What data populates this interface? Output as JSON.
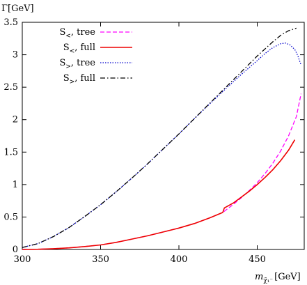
{
  "chart_data": {
    "type": "line",
    "title": "",
    "ylabel": "Γ[GeV]",
    "xlabel": {
      "main": "m",
      "subscript": "χ̃₁⁻",
      "unit": "[GeV]"
    },
    "xlim": [
      300,
      480
    ],
    "ylim": [
      0,
      3.5
    ],
    "xticks": [
      300,
      350,
      400,
      450
    ],
    "yticks": [
      0,
      0.5,
      1,
      1.5,
      2,
      2.5,
      3,
      3.5
    ],
    "grid": false,
    "legend_position": "top-left",
    "series": [
      {
        "name": "S<, tree",
        "label_main": "S",
        "label_sub": "<",
        "label_rest": ", tree",
        "color": "#ff00ff",
        "dash": "dashed",
        "x": [
          300,
          310,
          320,
          330,
          340,
          350,
          360,
          370,
          380,
          390,
          400,
          410,
          420,
          428,
          435,
          440,
          445,
          450,
          455,
          460,
          465,
          470,
          475,
          478
        ],
        "y": [
          0,
          0.003,
          0.012,
          0.025,
          0.045,
          0.07,
          0.11,
          0.16,
          0.21,
          0.27,
          0.33,
          0.4,
          0.49,
          0.57,
          0.7,
          0.8,
          0.91,
          1.03,
          1.17,
          1.33,
          1.52,
          1.75,
          2.05,
          2.4
        ]
      },
      {
        "name": "S<, full",
        "label_main": "S",
        "label_sub": "<",
        "label_rest": ", full",
        "color": "#ee0000",
        "dash": "solid",
        "x": [
          300,
          310,
          320,
          330,
          340,
          350,
          360,
          370,
          380,
          390,
          400,
          410,
          420,
          428,
          429,
          435,
          440,
          445,
          450,
          455,
          460,
          465,
          470,
          474
        ],
        "y": [
          0,
          0.003,
          0.012,
          0.025,
          0.045,
          0.07,
          0.11,
          0.16,
          0.21,
          0.27,
          0.33,
          0.4,
          0.49,
          0.57,
          0.64,
          0.72,
          0.81,
          0.9,
          1.0,
          1.11,
          1.23,
          1.37,
          1.53,
          1.69
        ]
      },
      {
        "name": "S>, tree",
        "label_main": "S",
        "label_sub": ">",
        "label_rest": ", tree",
        "color": "#0000cc",
        "dash": "dotted",
        "x": [
          300,
          310,
          320,
          330,
          340,
          350,
          360,
          370,
          380,
          390,
          400,
          410,
          420,
          430,
          440,
          450,
          455,
          460,
          465,
          468,
          471,
          474,
          476,
          478
        ],
        "y": [
          0.03,
          0.09,
          0.2,
          0.34,
          0.51,
          0.69,
          0.89,
          1.1,
          1.32,
          1.55,
          1.78,
          2.02,
          2.25,
          2.48,
          2.7,
          2.91,
          3.02,
          3.11,
          3.17,
          3.18,
          3.15,
          3.08,
          2.98,
          2.84
        ]
      },
      {
        "name": "S>, full",
        "label_main": "S",
        "label_sub": ">",
        "label_rest": ", full",
        "color": "#000000",
        "dash": "dashdot",
        "x": [
          300,
          310,
          320,
          330,
          340,
          350,
          360,
          370,
          380,
          390,
          400,
          410,
          420,
          430,
          440,
          450,
          460,
          465,
          470,
          475
        ],
        "y": [
          0.03,
          0.09,
          0.2,
          0.34,
          0.51,
          0.69,
          0.89,
          1.1,
          1.32,
          1.55,
          1.78,
          2.02,
          2.26,
          2.5,
          2.74,
          2.98,
          3.2,
          3.3,
          3.37,
          3.41
        ]
      }
    ]
  }
}
